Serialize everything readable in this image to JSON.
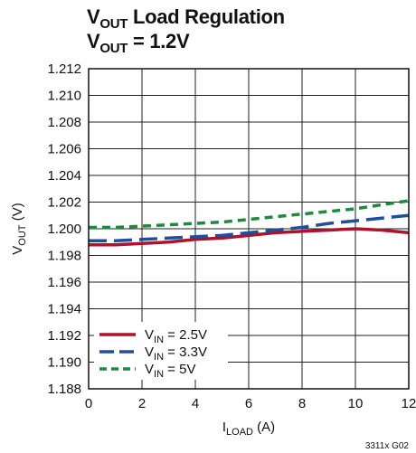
{
  "chart_data": {
    "type": "line",
    "title": {
      "line1": {
        "main": "V",
        "sub": "OUT",
        "rest": " Load Regulation"
      },
      "line2": {
        "main": "V",
        "sub": "OUT",
        "rest": " = 1.2V"
      }
    },
    "xlabel": {
      "main": "I",
      "sub": "LOAD",
      "rest": " (A)"
    },
    "ylabel": {
      "main": "V",
      "sub": "OUT",
      "rest": " (V)"
    },
    "xlim": [
      0,
      12
    ],
    "ylim": [
      1.188,
      1.212
    ],
    "x_ticks": [
      "0",
      "2",
      "4",
      "6",
      "8",
      "10",
      "12"
    ],
    "y_ticks": [
      "1.188",
      "1.190",
      "1.192",
      "1.194",
      "1.196",
      "1.198",
      "1.200",
      "1.202",
      "1.204",
      "1.206",
      "1.208",
      "1.210",
      "1.212"
    ],
    "grid": true,
    "legend_position": "bottom-left",
    "figure_id": "3311x G02",
    "series": [
      {
        "label": {
          "main": "V",
          "sub": "IN",
          "rest": " = 2.5V"
        },
        "color": "#b0112b",
        "dash": "solid",
        "x": [
          0,
          1,
          2,
          3,
          4,
          5,
          6,
          7,
          8,
          9,
          10,
          11,
          12
        ],
        "y": [
          1.1988,
          1.1988,
          1.1989,
          1.199,
          1.1992,
          1.1993,
          1.1995,
          1.1997,
          1.1998,
          1.1999,
          1.2,
          1.1999,
          1.1997
        ]
      },
      {
        "label": {
          "main": "V",
          "sub": "IN",
          "rest": " = 3.3V"
        },
        "color": "#1f4f9c",
        "dash": "long-dash",
        "x": [
          0,
          1,
          2,
          3,
          4,
          5,
          6,
          7,
          8,
          9,
          10,
          11,
          12
        ],
        "y": [
          1.1991,
          1.1991,
          1.1992,
          1.1993,
          1.1994,
          1.1995,
          1.1997,
          1.1999,
          1.2001,
          1.2004,
          1.2006,
          1.2008,
          1.201
        ]
      },
      {
        "label": {
          "main": "V",
          "sub": "IN",
          "rest": " = 5V"
        },
        "color": "#1e8a3c",
        "dash": "short-dash",
        "x": [
          0,
          1,
          2,
          3,
          4,
          5,
          6,
          7,
          8,
          9,
          10,
          11,
          12
        ],
        "y": [
          1.2001,
          1.2001,
          1.2002,
          1.2003,
          1.2004,
          1.2005,
          1.2007,
          1.2009,
          1.2011,
          1.2013,
          1.2015,
          1.2018,
          1.2021
        ]
      }
    ]
  }
}
